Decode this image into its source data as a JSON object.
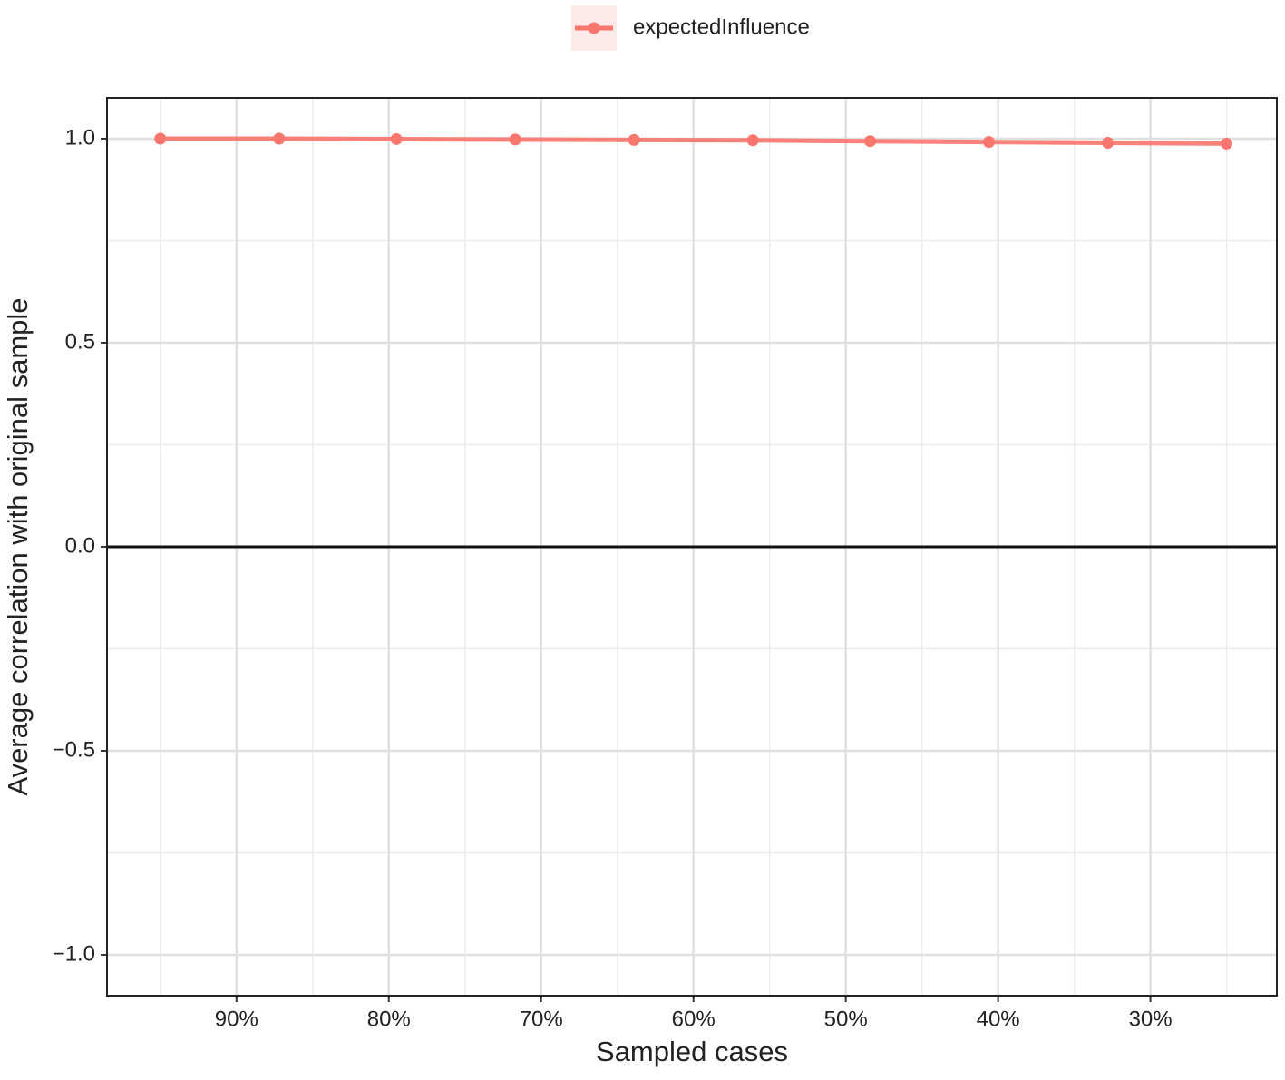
{
  "chart_data": {
    "type": "line",
    "x_label": "Sampled cases",
    "y_label": "Average correlation with original sample",
    "x": [
      95,
      87.2,
      79.5,
      71.7,
      63.9,
      56.1,
      48.4,
      40.6,
      32.8,
      25.0
    ],
    "series": [
      {
        "name": "expectedInfluence",
        "color": "#f8766d",
        "values": [
          1.0,
          1.0,
          0.999,
          0.998,
          0.997,
          0.996,
          0.994,
          0.992,
          0.99,
          0.988
        ]
      }
    ],
    "xlim": [
      98.5,
      21.7
    ],
    "xticks": [
      {
        "value": 90,
        "label": "90%"
      },
      {
        "value": 80,
        "label": "80%"
      },
      {
        "value": 70,
        "label": "70%"
      },
      {
        "value": 60,
        "label": "60%"
      },
      {
        "value": 50,
        "label": "50%"
      },
      {
        "value": 40,
        "label": "40%"
      },
      {
        "value": 30,
        "label": "30%"
      }
    ],
    "x_minor_grid": [
      95,
      85,
      75,
      65,
      55,
      45,
      35,
      25
    ],
    "ylim": [
      -1.1,
      1.1
    ],
    "yticks": [
      {
        "value": -1,
        "label": "−1.0"
      },
      {
        "value": -0.5,
        "label": "−0.5"
      },
      {
        "value": 0,
        "label": "0.0"
      },
      {
        "value": 0.5,
        "label": "0.5"
      },
      {
        "value": 1,
        "label": "1.0"
      }
    ],
    "y_minor_grid": [
      -0.75,
      -0.25,
      0.25,
      0.75
    ],
    "reference_line": 0,
    "grid": true,
    "legend": "top"
  }
}
